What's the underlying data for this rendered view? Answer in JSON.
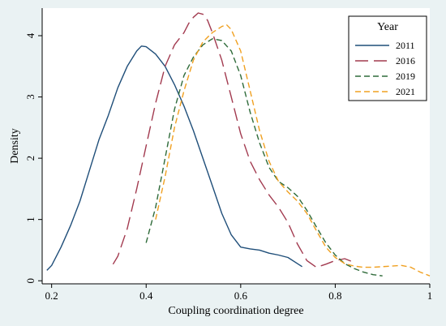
{
  "chart_data": {
    "type": "line",
    "title": "",
    "xlabel": "Coupling coordination degree",
    "ylabel": "Density",
    "xlim": [
      0.18,
      1.0
    ],
    "ylim": [
      -0.05,
      4.45
    ],
    "x_ticks": [
      "0.2",
      "0.4",
      "0.6",
      "0.8",
      "1"
    ],
    "x_tick_values": [
      0.2,
      0.4,
      0.6,
      0.8,
      1.0
    ],
    "y_ticks": [
      "0",
      "1",
      "2",
      "3",
      "4"
    ],
    "y_tick_values": [
      0,
      1,
      2,
      3,
      4
    ],
    "grid": false,
    "legend": {
      "title": "Year",
      "position": "top-right"
    },
    "series": [
      {
        "name": "2011",
        "color": "#1f4e79",
        "dash": "solid",
        "points": [
          [
            0.19,
            0.17
          ],
          [
            0.2,
            0.25
          ],
          [
            0.22,
            0.55
          ],
          [
            0.24,
            0.9
          ],
          [
            0.26,
            1.3
          ],
          [
            0.28,
            1.8
          ],
          [
            0.3,
            2.3
          ],
          [
            0.32,
            2.7
          ],
          [
            0.34,
            3.15
          ],
          [
            0.36,
            3.5
          ],
          [
            0.38,
            3.75
          ],
          [
            0.39,
            3.83
          ],
          [
            0.4,
            3.82
          ],
          [
            0.42,
            3.7
          ],
          [
            0.44,
            3.5
          ],
          [
            0.46,
            3.2
          ],
          [
            0.48,
            2.85
          ],
          [
            0.5,
            2.45
          ],
          [
            0.52,
            2.0
          ],
          [
            0.54,
            1.55
          ],
          [
            0.56,
            1.1
          ],
          [
            0.58,
            0.75
          ],
          [
            0.6,
            0.55
          ],
          [
            0.62,
            0.52
          ],
          [
            0.64,
            0.5
          ],
          [
            0.66,
            0.45
          ],
          [
            0.68,
            0.42
          ],
          [
            0.7,
            0.38
          ],
          [
            0.72,
            0.28
          ],
          [
            0.73,
            0.23
          ]
        ]
      },
      {
        "name": "2016",
        "color": "#a23a4f",
        "dash": "long-dash",
        "points": [
          [
            0.33,
            0.27
          ],
          [
            0.34,
            0.4
          ],
          [
            0.36,
            0.85
          ],
          [
            0.38,
            1.5
          ],
          [
            0.4,
            2.2
          ],
          [
            0.42,
            2.9
          ],
          [
            0.44,
            3.5
          ],
          [
            0.46,
            3.85
          ],
          [
            0.48,
            4.05
          ],
          [
            0.49,
            4.2
          ],
          [
            0.5,
            4.3
          ],
          [
            0.51,
            4.37
          ],
          [
            0.52,
            4.35
          ],
          [
            0.53,
            4.25
          ],
          [
            0.54,
            4.05
          ],
          [
            0.56,
            3.6
          ],
          [
            0.58,
            3.0
          ],
          [
            0.6,
            2.4
          ],
          [
            0.62,
            1.95
          ],
          [
            0.64,
            1.65
          ],
          [
            0.66,
            1.4
          ],
          [
            0.68,
            1.2
          ],
          [
            0.7,
            0.95
          ],
          [
            0.72,
            0.6
          ],
          [
            0.74,
            0.33
          ],
          [
            0.76,
            0.22
          ],
          [
            0.78,
            0.27
          ],
          [
            0.8,
            0.33
          ],
          [
            0.82,
            0.36
          ],
          [
            0.84,
            0.3
          ]
        ]
      },
      {
        "name": "2019",
        "color": "#2f6b3a",
        "dash": "dash",
        "points": [
          [
            0.4,
            0.62
          ],
          [
            0.42,
            1.2
          ],
          [
            0.44,
            2.0
          ],
          [
            0.46,
            2.8
          ],
          [
            0.48,
            3.35
          ],
          [
            0.5,
            3.65
          ],
          [
            0.52,
            3.85
          ],
          [
            0.54,
            3.95
          ],
          [
            0.56,
            3.92
          ],
          [
            0.58,
            3.75
          ],
          [
            0.6,
            3.35
          ],
          [
            0.62,
            2.75
          ],
          [
            0.64,
            2.25
          ],
          [
            0.66,
            1.85
          ],
          [
            0.68,
            1.62
          ],
          [
            0.7,
            1.52
          ],
          [
            0.72,
            1.38
          ],
          [
            0.74,
            1.15
          ],
          [
            0.76,
            0.88
          ],
          [
            0.78,
            0.62
          ],
          [
            0.8,
            0.42
          ],
          [
            0.82,
            0.28
          ],
          [
            0.84,
            0.2
          ],
          [
            0.86,
            0.14
          ],
          [
            0.88,
            0.1
          ],
          [
            0.9,
            0.08
          ]
        ]
      },
      {
        "name": "2021",
        "color": "#f0a020",
        "dash": "dash",
        "points": [
          [
            0.42,
            1.0
          ],
          [
            0.44,
            1.7
          ],
          [
            0.46,
            2.5
          ],
          [
            0.48,
            3.1
          ],
          [
            0.5,
            3.6
          ],
          [
            0.52,
            3.9
          ],
          [
            0.54,
            4.05
          ],
          [
            0.56,
            4.15
          ],
          [
            0.57,
            4.18
          ],
          [
            0.58,
            4.1
          ],
          [
            0.6,
            3.75
          ],
          [
            0.62,
            3.1
          ],
          [
            0.64,
            2.45
          ],
          [
            0.66,
            1.95
          ],
          [
            0.68,
            1.62
          ],
          [
            0.7,
            1.45
          ],
          [
            0.72,
            1.3
          ],
          [
            0.74,
            1.1
          ],
          [
            0.76,
            0.82
          ],
          [
            0.78,
            0.55
          ],
          [
            0.8,
            0.38
          ],
          [
            0.82,
            0.28
          ],
          [
            0.84,
            0.24
          ],
          [
            0.86,
            0.22
          ],
          [
            0.88,
            0.22
          ],
          [
            0.9,
            0.23
          ],
          [
            0.92,
            0.24
          ],
          [
            0.94,
            0.25
          ],
          [
            0.96,
            0.22
          ],
          [
            0.98,
            0.14
          ],
          [
            1.0,
            0.08
          ]
        ]
      }
    ]
  }
}
